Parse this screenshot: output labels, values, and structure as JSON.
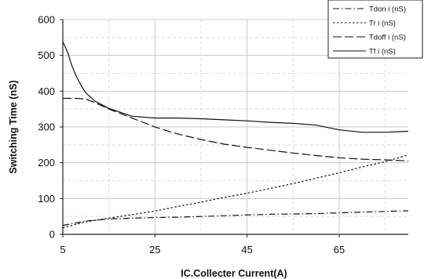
{
  "chart_data": {
    "type": "line",
    "title": "",
    "xlabel": "IC.Collecter Current(A)",
    "ylabel": "Switching Time (nS)",
    "xlim": [
      5,
      80
    ],
    "ylim": [
      0,
      600
    ],
    "x_ticks": [
      "5",
      "25",
      "45",
      "65"
    ],
    "y_ticks": [
      "0",
      "100",
      "200",
      "300",
      "400",
      "500",
      "600"
    ],
    "grid": true,
    "legend_position": "top-right",
    "series": [
      {
        "name": "Tdon i (nS)",
        "dash": "dash-dot",
        "points": [
          [
            5,
            25
          ],
          [
            10,
            37
          ],
          [
            15,
            43
          ],
          [
            20,
            45
          ],
          [
            25,
            47
          ],
          [
            30,
            48
          ],
          [
            35,
            50
          ],
          [
            40,
            52
          ],
          [
            45,
            54
          ],
          [
            50,
            56
          ],
          [
            55,
            57
          ],
          [
            60,
            58
          ],
          [
            65,
            60
          ],
          [
            70,
            62
          ],
          [
            75,
            64
          ],
          [
            80,
            66
          ]
        ]
      },
      {
        "name": "Tr i (nS)",
        "dash": "dotted",
        "points": [
          [
            5,
            18
          ],
          [
            10,
            35
          ],
          [
            15,
            45
          ],
          [
            20,
            55
          ],
          [
            25,
            65
          ],
          [
            30,
            78
          ],
          [
            35,
            90
          ],
          [
            40,
            103
          ],
          [
            45,
            115
          ],
          [
            50,
            128
          ],
          [
            55,
            142
          ],
          [
            60,
            157
          ],
          [
            65,
            172
          ],
          [
            70,
            188
          ],
          [
            75,
            203
          ],
          [
            80,
            222
          ]
        ]
      },
      {
        "name": "Tdoff i (nS)",
        "dash": "long-dash",
        "points": [
          [
            5,
            380
          ],
          [
            8,
            380
          ],
          [
            10,
            378
          ],
          [
            12,
            368
          ],
          [
            15,
            350
          ],
          [
            20,
            325
          ],
          [
            25,
            300
          ],
          [
            30,
            280
          ],
          [
            35,
            265
          ],
          [
            40,
            252
          ],
          [
            45,
            243
          ],
          [
            50,
            235
          ],
          [
            55,
            227
          ],
          [
            60,
            220
          ],
          [
            65,
            214
          ],
          [
            70,
            210
          ],
          [
            75,
            208
          ],
          [
            80,
            205
          ]
        ]
      },
      {
        "name": "Tf i (nS)",
        "dash": "solid",
        "points": [
          [
            5,
            538
          ],
          [
            6,
            510
          ],
          [
            7,
            470
          ],
          [
            8,
            440
          ],
          [
            9,
            415
          ],
          [
            10,
            395
          ],
          [
            12,
            372
          ],
          [
            15,
            352
          ],
          [
            20,
            330
          ],
          [
            25,
            325
          ],
          [
            30,
            325
          ],
          [
            35,
            323
          ],
          [
            40,
            320
          ],
          [
            45,
            317
          ],
          [
            50,
            313
          ],
          [
            55,
            310
          ],
          [
            60,
            305
          ],
          [
            65,
            292
          ],
          [
            70,
            285
          ],
          [
            75,
            285
          ],
          [
            80,
            288
          ]
        ]
      }
    ]
  }
}
